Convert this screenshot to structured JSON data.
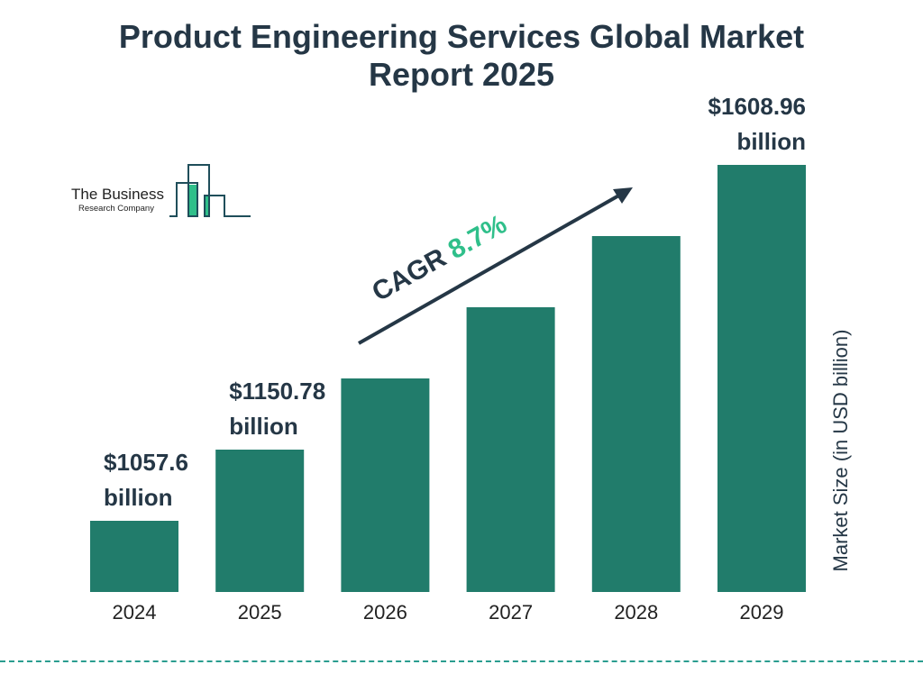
{
  "chart_data": {
    "type": "bar",
    "title": "Product Engineering Services Global Market Report 2025",
    "title_lines": [
      "Product Engineering Services Global Market",
      "Report 2025"
    ],
    "categories": [
      "2024",
      "2025",
      "2026",
      "2027",
      "2028",
      "2029"
    ],
    "values": [
      1057.6,
      1150.78,
      1250.9,
      1359.7,
      1478.0,
      1608.96
    ],
    "data_labels": [
      {
        "index": 0,
        "line1": "$1057.6",
        "line2": "billion"
      },
      {
        "index": 1,
        "line1": "$1150.78",
        "line2": "billion"
      },
      {
        "index": 5,
        "line1": "$1608.96",
        "line2": "billion"
      }
    ],
    "ylabel": "Market Size (in USD billion)",
    "xlabel": "",
    "annotation": {
      "prefix": "CAGR ",
      "value": "8.7%"
    },
    "grid": false,
    "colors": {
      "bar": "#217c6b",
      "text": "#253746",
      "cagr": "#2fbf8a",
      "divider": "#2a9d8f"
    }
  },
  "logo": {
    "line1": "The Business",
    "line2": "Research Company"
  }
}
